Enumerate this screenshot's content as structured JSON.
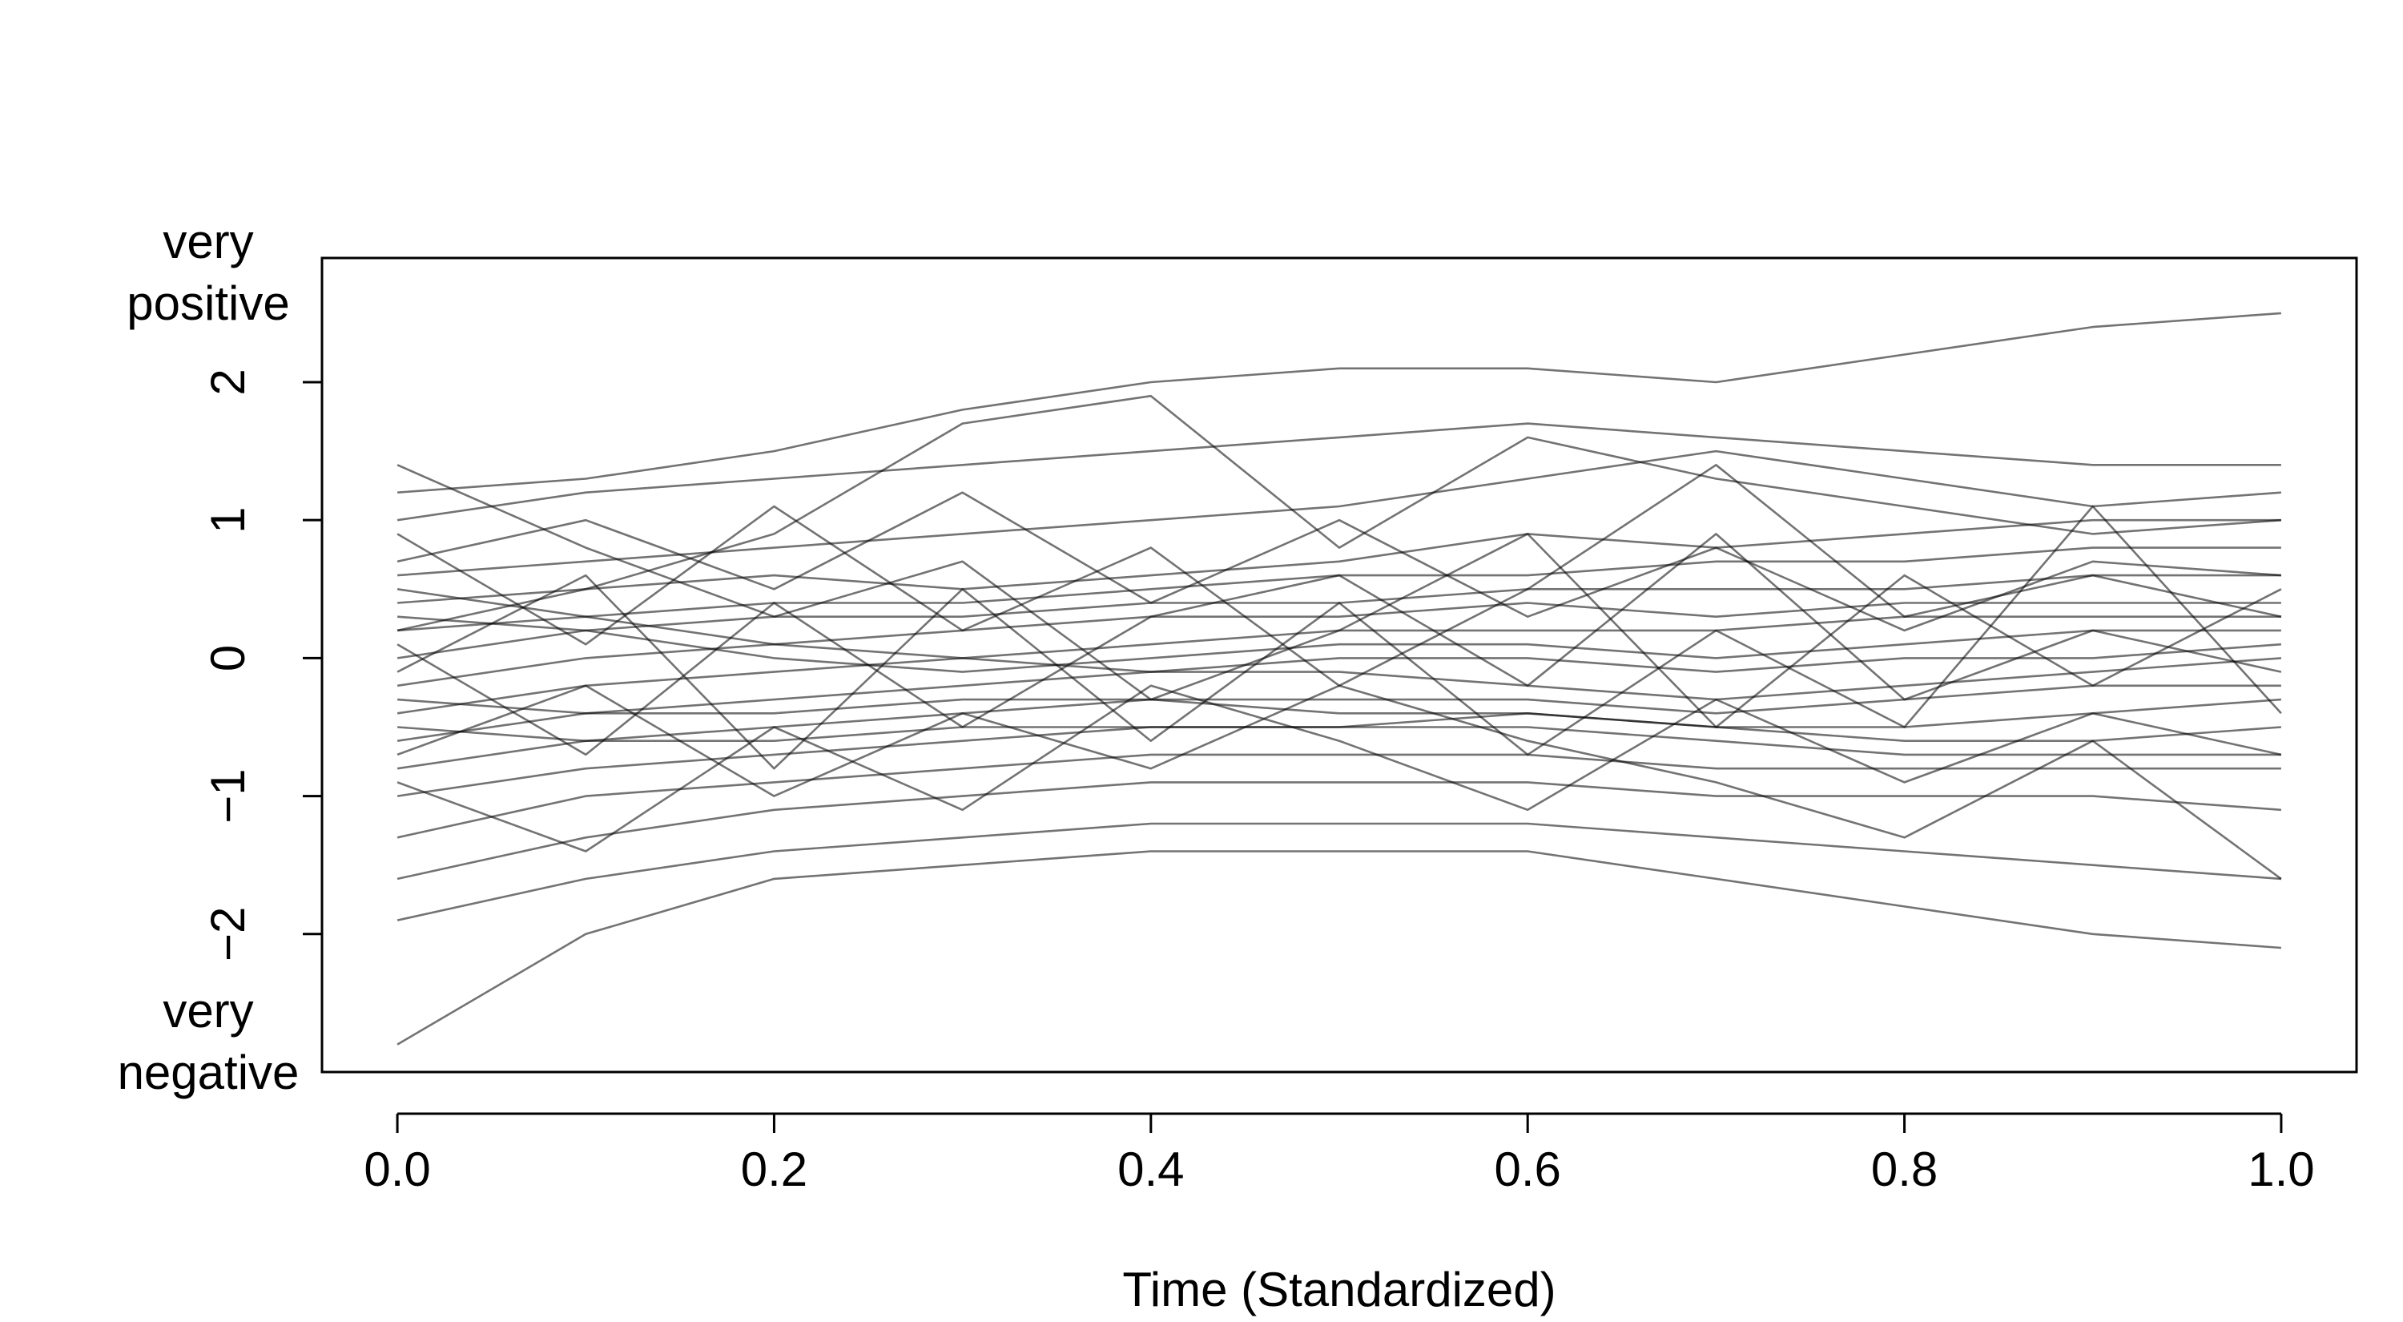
{
  "chart_data": {
    "type": "line",
    "title": "",
    "xlabel": "Time (Standardized)",
    "ylabel": "",
    "xlim": [
      -0.04,
      1.04
    ],
    "ylim": [
      -3.0,
      2.9
    ],
    "x_ticks": [
      0.0,
      0.2,
      0.4,
      0.6,
      0.8,
      1.0
    ],
    "x_tick_labels": [
      "0.0",
      "0.2",
      "0.4",
      "0.6",
      "0.8",
      "1.0"
    ],
    "y_ticks": [
      -2,
      -1,
      0,
      1,
      2
    ],
    "y_tick_labels": [
      "−2",
      "−1",
      "0",
      "1",
      "2"
    ],
    "y_top_label": [
      "very",
      "positive"
    ],
    "y_bottom_label": [
      "very",
      "negative"
    ],
    "grid": false,
    "legend": "none",
    "line_color": "#000000",
    "series": [
      {
        "x": [
          0.0,
          0.1,
          0.2,
          0.3,
          0.4,
          0.5,
          0.6,
          0.7,
          0.8,
          0.9,
          1.0
        ],
        "values": [
          1.2,
          1.3,
          1.5,
          1.8,
          2.0,
          2.1,
          2.1,
          2.0,
          2.2,
          2.4,
          2.5
        ]
      },
      {
        "x": [
          0.0,
          0.1,
          0.2,
          0.3,
          0.4,
          0.5,
          0.6,
          0.7,
          0.8,
          0.9,
          1.0
        ],
        "values": [
          1.0,
          1.2,
          1.3,
          1.4,
          1.5,
          1.6,
          1.7,
          1.6,
          1.5,
          1.4,
          1.4
        ]
      },
      {
        "x": [
          0.0,
          0.1,
          0.2,
          0.3,
          0.4,
          0.5,
          0.6,
          0.7,
          0.8,
          0.9,
          1.0
        ],
        "values": [
          0.6,
          0.7,
          0.8,
          0.9,
          1.0,
          1.1,
          1.3,
          1.5,
          1.3,
          1.1,
          1.2
        ]
      },
      {
        "x": [
          0.0,
          0.1,
          0.2,
          0.3,
          0.4,
          0.5,
          0.6,
          0.7,
          0.8,
          0.9,
          1.0
        ],
        "values": [
          0.4,
          0.5,
          0.6,
          0.5,
          0.6,
          0.7,
          0.9,
          0.8,
          0.9,
          1.0,
          1.0
        ]
      },
      {
        "x": [
          0.0,
          0.1,
          0.2,
          0.3,
          0.4,
          0.5,
          0.6,
          0.7,
          0.8,
          0.9,
          1.0
        ],
        "values": [
          0.2,
          0.3,
          0.4,
          0.4,
          0.5,
          0.6,
          0.6,
          0.7,
          0.7,
          0.8,
          0.8
        ]
      },
      {
        "x": [
          0.0,
          0.1,
          0.2,
          0.3,
          0.4,
          0.5,
          0.6,
          0.7,
          0.8,
          0.9,
          1.0
        ],
        "values": [
          0.0,
          0.2,
          0.3,
          0.3,
          0.4,
          0.4,
          0.5,
          0.5,
          0.5,
          0.6,
          0.6
        ]
      },
      {
        "x": [
          0.0,
          0.1,
          0.2,
          0.3,
          0.4,
          0.5,
          0.6,
          0.7,
          0.8,
          0.9,
          1.0
        ],
        "values": [
          -0.2,
          0.0,
          0.1,
          0.2,
          0.3,
          0.3,
          0.4,
          0.3,
          0.4,
          0.4,
          0.4
        ]
      },
      {
        "x": [
          0.0,
          0.1,
          0.2,
          0.3,
          0.4,
          0.5,
          0.6,
          0.7,
          0.8,
          0.9,
          1.0
        ],
        "values": [
          -0.4,
          -0.2,
          -0.1,
          0.0,
          0.1,
          0.2,
          0.2,
          0.2,
          0.3,
          0.3,
          0.3
        ]
      },
      {
        "x": [
          0.0,
          0.1,
          0.2,
          0.3,
          0.4,
          0.5,
          0.6,
          0.7,
          0.8,
          0.9,
          1.0
        ],
        "values": [
          0.3,
          0.2,
          0.0,
          -0.1,
          0.0,
          0.1,
          0.1,
          0.0,
          0.1,
          0.2,
          0.2
        ]
      },
      {
        "x": [
          0.0,
          0.1,
          0.2,
          0.3,
          0.4,
          0.5,
          0.6,
          0.7,
          0.8,
          0.9,
          1.0
        ],
        "values": [
          -0.6,
          -0.4,
          -0.3,
          -0.2,
          -0.1,
          0.0,
          0.0,
          -0.1,
          0.0,
          0.0,
          0.1
        ]
      },
      {
        "x": [
          0.0,
          0.1,
          0.2,
          0.3,
          0.4,
          0.5,
          0.6,
          0.7,
          0.8,
          0.9,
          1.0
        ],
        "values": [
          0.5,
          0.3,
          0.1,
          0.0,
          -0.1,
          -0.1,
          -0.2,
          -0.3,
          -0.2,
          -0.1,
          0.0
        ]
      },
      {
        "x": [
          0.0,
          0.1,
          0.2,
          0.3,
          0.4,
          0.5,
          0.6,
          0.7,
          0.8,
          0.9,
          1.0
        ],
        "values": [
          -0.8,
          -0.6,
          -0.5,
          -0.4,
          -0.3,
          -0.3,
          -0.3,
          -0.4,
          -0.3,
          -0.2,
          -0.2
        ]
      },
      {
        "x": [
          0.0,
          0.1,
          0.2,
          0.3,
          0.4,
          0.5,
          0.6,
          0.7,
          0.8,
          0.9,
          1.0
        ],
        "values": [
          -0.3,
          -0.4,
          -0.4,
          -0.3,
          -0.3,
          -0.4,
          -0.4,
          -0.5,
          -0.5,
          -0.4,
          -0.3
        ]
      },
      {
        "x": [
          0.0,
          0.1,
          0.2,
          0.3,
          0.4,
          0.5,
          0.6,
          0.7,
          0.8,
          0.9,
          1.0
        ],
        "values": [
          -1.0,
          -0.8,
          -0.7,
          -0.6,
          -0.5,
          -0.5,
          -0.4,
          -0.5,
          -0.6,
          -0.6,
          -0.5
        ]
      },
      {
        "x": [
          0.0,
          0.1,
          0.2,
          0.3,
          0.4,
          0.5,
          0.6,
          0.7,
          0.8,
          0.9,
          1.0
        ],
        "values": [
          -0.5,
          -0.6,
          -0.6,
          -0.5,
          -0.5,
          -0.5,
          -0.5,
          -0.6,
          -0.7,
          -0.7,
          -0.7
        ]
      },
      {
        "x": [
          0.0,
          0.1,
          0.2,
          0.3,
          0.4,
          0.5,
          0.6,
          0.7,
          0.8,
          0.9,
          1.0
        ],
        "values": [
          -1.3,
          -1.0,
          -0.9,
          -0.8,
          -0.7,
          -0.7,
          -0.7,
          -0.8,
          -0.8,
          -0.8,
          -0.8
        ]
      },
      {
        "x": [
          0.0,
          0.1,
          0.2,
          0.3,
          0.4,
          0.5,
          0.6,
          0.7,
          0.8,
          0.9,
          1.0
        ],
        "values": [
          -1.6,
          -1.3,
          -1.1,
          -1.0,
          -0.9,
          -0.9,
          -0.9,
          -1.0,
          -1.0,
          -1.0,
          -1.1
        ]
      },
      {
        "x": [
          0.0,
          0.1,
          0.2,
          0.3,
          0.4,
          0.5,
          0.6,
          0.7,
          0.8,
          0.9,
          1.0
        ],
        "values": [
          -1.9,
          -1.6,
          -1.4,
          -1.3,
          -1.2,
          -1.2,
          -1.2,
          -1.3,
          -1.4,
          -1.5,
          -1.6
        ]
      },
      {
        "x": [
          0.0,
          0.1,
          0.2,
          0.3,
          0.4,
          0.5,
          0.6,
          0.7,
          0.8,
          0.9,
          1.0
        ],
        "values": [
          -2.8,
          -2.0,
          -1.6,
          -1.5,
          -1.4,
          -1.4,
          -1.4,
          -1.6,
          -1.8,
          -2.0,
          -2.1
        ]
      },
      {
        "x": [
          0.0,
          0.1,
          0.2,
          0.3,
          0.4,
          0.5,
          0.6,
          0.7,
          0.8,
          0.9,
          1.0
        ],
        "values": [
          0.2,
          0.5,
          0.9,
          1.7,
          1.9,
          0.8,
          1.6,
          1.3,
          1.1,
          0.9,
          1.0
        ]
      },
      {
        "x": [
          0.0,
          0.1,
          0.2,
          0.3,
          0.4,
          0.5,
          0.6,
          0.7,
          0.8,
          0.9,
          1.0
        ],
        "values": [
          -0.9,
          -1.4,
          -0.5,
          -1.1,
          -0.2,
          -0.6,
          -1.1,
          -0.3,
          -0.9,
          -0.4,
          -0.7
        ]
      },
      {
        "x": [
          0.0,
          0.1,
          0.2,
          0.3,
          0.4,
          0.5,
          0.6,
          0.7,
          0.8,
          0.9,
          1.0
        ],
        "values": [
          0.9,
          0.1,
          1.1,
          0.2,
          0.8,
          -0.2,
          0.5,
          1.4,
          0.3,
          0.6,
          0.3
        ]
      },
      {
        "x": [
          0.0,
          0.1,
          0.2,
          0.3,
          0.4,
          0.5,
          0.6,
          0.7,
          0.8,
          0.9,
          1.0
        ],
        "values": [
          0.1,
          -0.7,
          0.4,
          -0.5,
          0.3,
          0.6,
          -0.2,
          0.9,
          -0.3,
          0.2,
          -0.1
        ]
      },
      {
        "x": [
          0.0,
          0.1,
          0.2,
          0.3,
          0.4,
          0.5,
          0.6,
          0.7,
          0.8,
          0.9,
          1.0
        ],
        "values": [
          1.4,
          0.8,
          0.3,
          0.7,
          -0.3,
          0.2,
          0.9,
          -0.5,
          0.6,
          -0.2,
          0.5
        ]
      },
      {
        "x": [
          0.0,
          0.1,
          0.2,
          0.3,
          0.4,
          0.5,
          0.6,
          0.7,
          0.8,
          0.9,
          1.0
        ],
        "values": [
          -0.1,
          0.6,
          -0.8,
          0.5,
          -0.6,
          0.4,
          -0.7,
          0.2,
          -0.5,
          1.1,
          -0.4
        ]
      },
      {
        "x": [
          0.0,
          0.1,
          0.2,
          0.3,
          0.4,
          0.5,
          0.6,
          0.7,
          0.8,
          0.9,
          1.0
        ],
        "values": [
          0.7,
          1.0,
          0.5,
          1.2,
          0.4,
          1.0,
          0.3,
          0.8,
          0.2,
          0.7,
          0.6
        ]
      },
      {
        "x": [
          0.0,
          0.1,
          0.2,
          0.3,
          0.4,
          0.5,
          0.6,
          0.7,
          0.8,
          0.9,
          1.0
        ],
        "values": [
          -0.7,
          -0.2,
          -1.0,
          -0.4,
          -0.8,
          -0.2,
          -0.6,
          -0.9,
          -1.3,
          -0.6,
          -1.6
        ]
      }
    ]
  }
}
